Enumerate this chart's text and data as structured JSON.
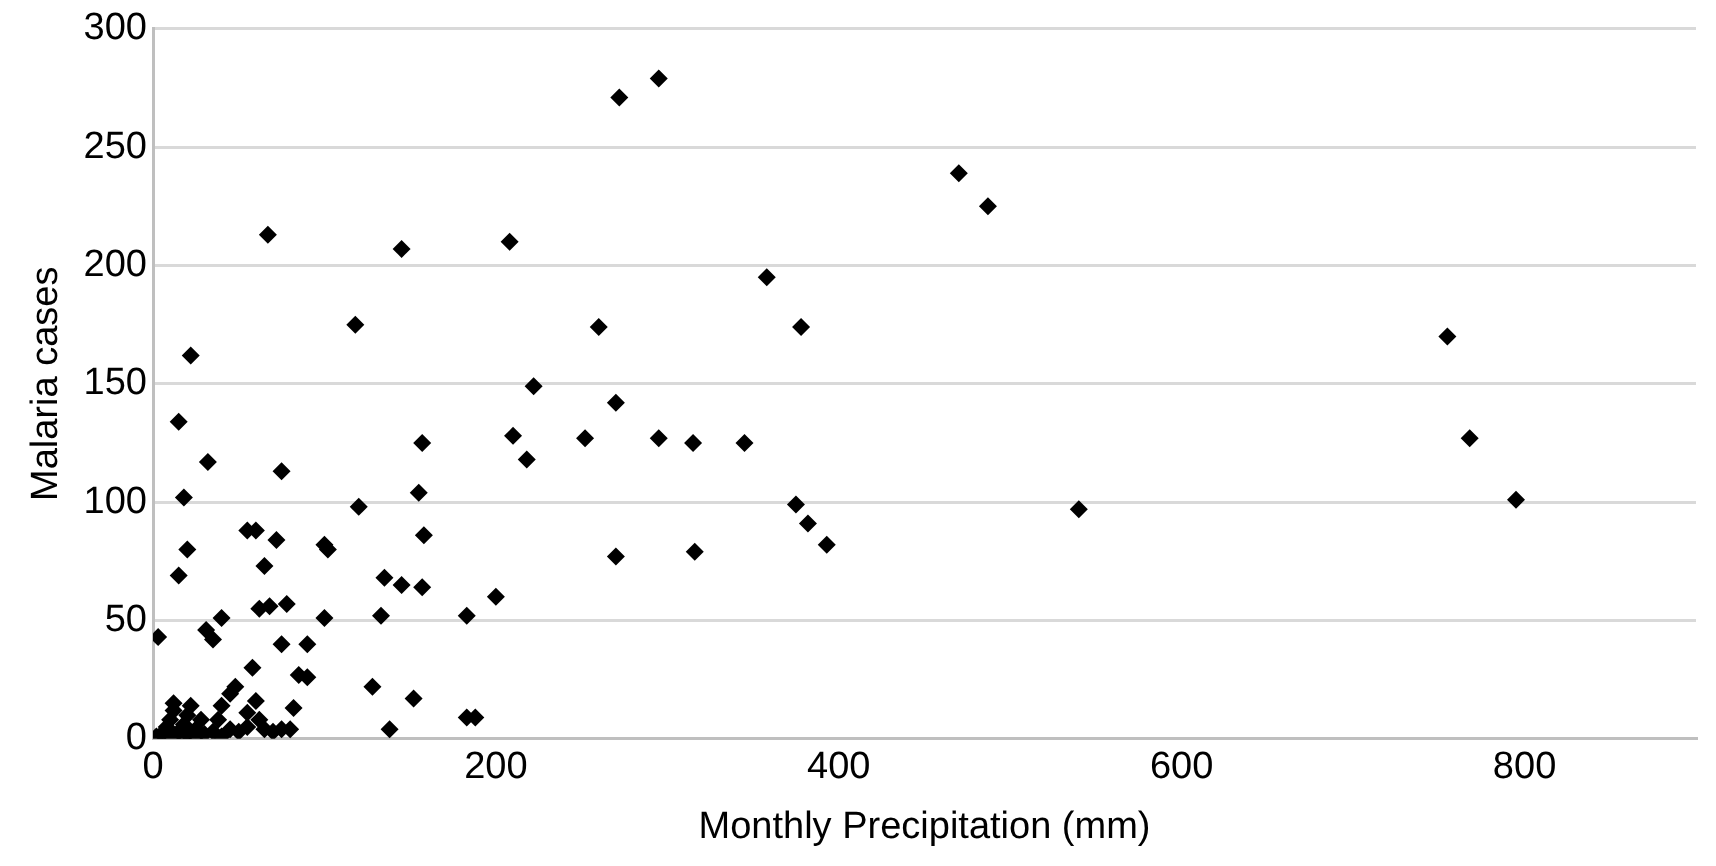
{
  "chart_data": {
    "type": "scatter",
    "xlabel": "Monthly Precipitation (mm)",
    "ylabel": "Malaria cases",
    "xlim": [
      0,
      900
    ],
    "xticks": [
      0,
      200,
      400,
      600,
      800
    ],
    "ylim": [
      0,
      300
    ],
    "yticks": [
      0,
      50,
      100,
      150,
      200,
      250,
      300
    ],
    "grid": "y",
    "legend": false,
    "marker": "diamond",
    "series": [
      {
        "color": "#000000",
        "x": [
          3,
          15,
          22,
          18,
          20,
          15,
          32,
          31,
          35,
          40,
          67,
          145,
          208,
          118,
          260,
          378,
          358,
          272,
          295,
          470,
          487,
          755,
          768,
          795,
          540,
          222,
          210,
          218,
          252,
          270,
          295,
          315,
          345,
          270,
          316,
          375,
          382,
          393,
          200,
          157,
          145,
          135,
          158,
          155,
          157,
          120,
          100,
          102,
          55,
          60,
          72,
          75,
          65,
          68,
          78,
          62,
          75,
          183,
          133,
          100,
          90,
          128,
          152,
          183,
          188,
          138,
          80,
          85,
          90,
          82,
          58,
          60,
          55,
          48,
          45,
          40,
          38,
          5,
          8,
          10,
          12,
          15,
          18,
          20,
          22,
          25,
          28,
          30,
          35,
          40,
          45,
          50,
          55,
          62,
          65,
          70,
          75,
          2,
          10,
          18,
          25,
          12,
          20
        ],
        "values": [
          43,
          134,
          162,
          102,
          80,
          69,
          117,
          46,
          42,
          51,
          213,
          207,
          210,
          175,
          174,
          174,
          195,
          271,
          279,
          239,
          225,
          170,
          127,
          101,
          97,
          149,
          128,
          118,
          127,
          142,
          127,
          125,
          125,
          77,
          79,
          99,
          91,
          82,
          60,
          64,
          65,
          68,
          86,
          104,
          125,
          98,
          82,
          80,
          88,
          88,
          84,
          113,
          73,
          56,
          57,
          55,
          40,
          52,
          52,
          51,
          40,
          22,
          17,
          9,
          9,
          4,
          4,
          27,
          26,
          13,
          30,
          16,
          11,
          22,
          19,
          14,
          8,
          2,
          5,
          8,
          12,
          3,
          6,
          10,
          14,
          4,
          8,
          2,
          3,
          1,
          4,
          3,
          5,
          8,
          4,
          3,
          4,
          1,
          1,
          1,
          1,
          15,
          2
        ]
      }
    ]
  }
}
